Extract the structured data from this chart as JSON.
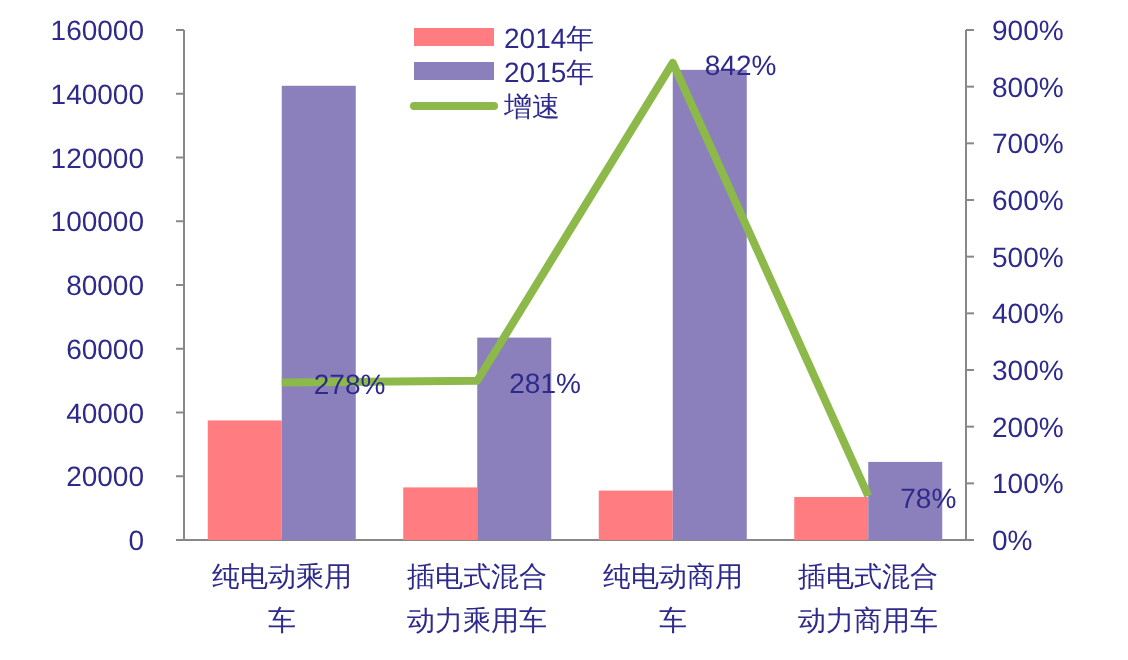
{
  "chart_data": {
    "type": "bar",
    "categories": [
      "纯电动乘用车",
      "插电式混合动力乘用车",
      "纯电动商用车",
      "插电式混合动力商用车"
    ],
    "series": [
      {
        "name": "2014年",
        "color": "#ff7c80",
        "values": [
          37500,
          16500,
          15500,
          13500
        ]
      },
      {
        "name": "2015年",
        "color": "#8b80bb",
        "values": [
          142500,
          63500,
          147500,
          24500
        ]
      },
      {
        "name": "增速",
        "type": "line",
        "axis": "y2",
        "color": "#8db84a",
        "values": [
          278,
          281,
          842,
          78
        ],
        "value_labels": [
          "278%",
          "281%",
          "842%",
          "78%"
        ]
      }
    ],
    "ylim": [
      0,
      160000
    ],
    "yticks": [
      0,
      20000,
      40000,
      60000,
      80000,
      100000,
      120000,
      140000,
      160000
    ],
    "y2lim": [
      0,
      900
    ],
    "y2ticks": [
      {
        "value": 0,
        "label": "0%"
      },
      {
        "value": 100,
        "label": "100%"
      },
      {
        "value": 200,
        "label": "200%"
      },
      {
        "value": 300,
        "label": "300%"
      },
      {
        "value": 400,
        "label": "400%"
      },
      {
        "value": 500,
        "label": "500%"
      },
      {
        "value": 600,
        "label": "600%"
      },
      {
        "value": 700,
        "label": "700%"
      },
      {
        "value": 800,
        "label": "800%"
      },
      {
        "value": 900,
        "label": "900%"
      }
    ],
    "legend": "top",
    "grid": false
  }
}
